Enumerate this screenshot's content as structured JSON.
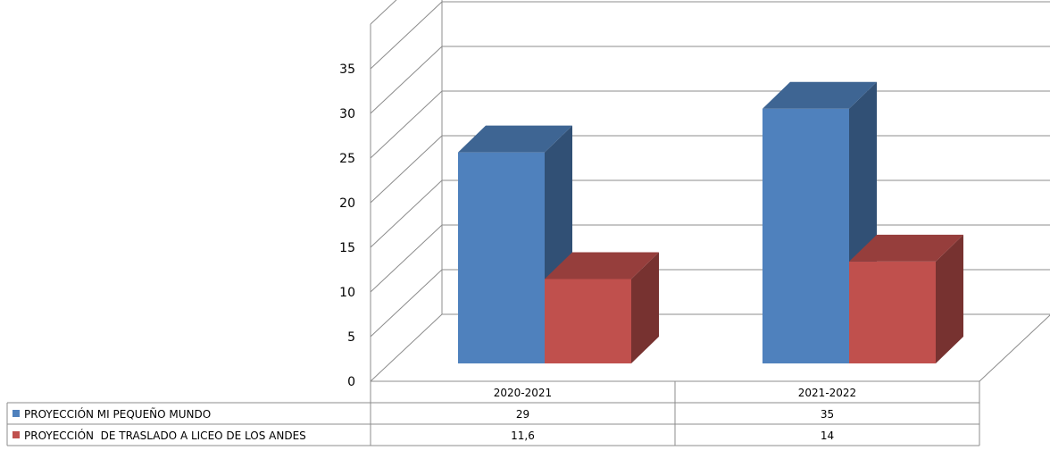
{
  "chart_data": {
    "type": "bar",
    "categories": [
      "2020-2021",
      "2021-2022"
    ],
    "series": [
      {
        "name": "PROYECCIÓN MI PEQUEÑO MUNDO",
        "values": [
          29,
          35
        ],
        "value_labels": [
          "29",
          "35"
        ],
        "color": "#4f81bd"
      },
      {
        "name": "PROYECCIÓN  DE TRASLADO A LICEO DE LOS ANDES",
        "values": [
          11.6,
          14
        ],
        "value_labels": [
          "11,6",
          "14"
        ],
        "color": "#c0504d"
      }
    ],
    "y_ticks": [
      0,
      5,
      10,
      15,
      20,
      25,
      30,
      35
    ],
    "ylim": [
      0,
      35
    ],
    "grid": true,
    "three_d": true,
    "legend": "data-table-below"
  }
}
